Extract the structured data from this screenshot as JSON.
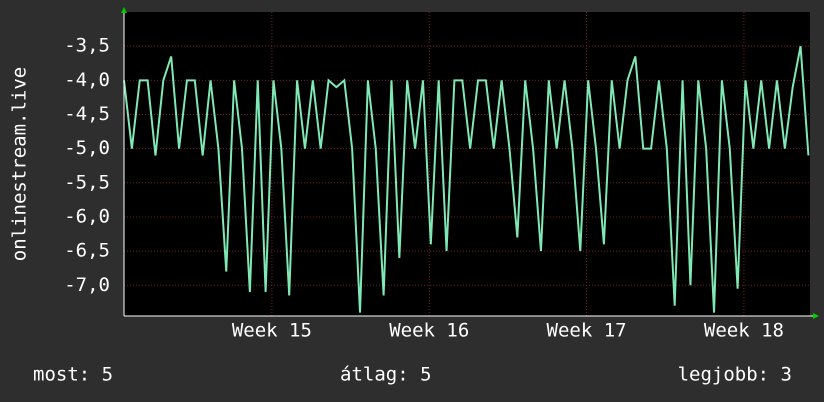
{
  "chart_data": {
    "type": "line",
    "y_label": "onlinestream.live",
    "x": [
      14.06,
      14.11,
      14.16,
      14.21,
      14.26,
      14.31,
      14.36,
      14.41,
      14.46,
      14.51,
      14.56,
      14.61,
      14.66,
      14.71,
      14.76,
      14.81,
      14.86,
      14.91,
      14.96,
      15.01,
      15.06,
      15.11,
      15.16,
      15.21,
      15.26,
      15.31,
      15.36,
      15.41,
      15.46,
      15.51,
      15.56,
      15.61,
      15.66,
      15.71,
      15.76,
      15.81,
      15.86,
      15.91,
      15.96,
      16.01,
      16.06,
      16.11,
      16.16,
      16.21,
      16.26,
      16.31,
      16.36,
      16.41,
      16.46,
      16.51,
      16.56,
      16.61,
      16.66,
      16.71,
      16.76,
      16.81,
      16.86,
      16.91,
      16.96,
      17.01,
      17.06,
      17.11,
      17.16,
      17.21,
      17.26,
      17.31,
      17.36,
      17.41,
      17.46,
      17.51,
      17.56,
      17.61,
      17.66,
      17.71,
      17.76,
      17.81,
      17.86,
      17.91,
      17.96,
      18.01,
      18.06,
      18.11,
      18.16,
      18.21,
      18.26,
      18.31,
      18.36,
      18.41
    ],
    "series": [
      {
        "color": "#7fe8b4",
        "values": [
          -4.0,
          -5.0,
          -4.0,
          -4.0,
          -5.1,
          -4.0,
          -3.65,
          -5.0,
          -4.0,
          -4.0,
          -5.1,
          -4.0,
          -5.0,
          -6.8,
          -4.0,
          -5.0,
          -7.1,
          -4.0,
          -7.1,
          -4.0,
          -5.0,
          -7.15,
          -4.0,
          -5.0,
          -4.0,
          -5.0,
          -4.0,
          -4.1,
          -4.0,
          -5.0,
          -7.4,
          -4.0,
          -5.0,
          -7.15,
          -4.0,
          -6.6,
          -4.0,
          -5.0,
          -4.0,
          -6.4,
          -4.0,
          -6.5,
          -4.0,
          -4.0,
          -5.0,
          -4.0,
          -4.0,
          -5.0,
          -4.0,
          -5.0,
          -6.3,
          -4.0,
          -5.0,
          -6.5,
          -4.0,
          -5.0,
          -4.0,
          -5.0,
          -6.5,
          -4.0,
          -5.0,
          -6.4,
          -4.0,
          -5.0,
          -4.0,
          -3.65,
          -5.0,
          -5.0,
          -4.0,
          -5.0,
          -7.3,
          -4.0,
          -7.0,
          -4.0,
          -5.0,
          -7.4,
          -4.0,
          -5.0,
          -7.05,
          -4.0,
          -5.0,
          -4.0,
          -5.0,
          -4.0,
          -5.0,
          -4.1,
          -3.5,
          -5.1
        ]
      }
    ],
    "xlim": [
      14.06,
      18.42
    ],
    "xticks": [
      {
        "value": 15,
        "label": "Week 15"
      },
      {
        "value": 16,
        "label": "Week 16"
      },
      {
        "value": 17,
        "label": "Week 17"
      },
      {
        "value": 18,
        "label": "Week 18"
      }
    ],
    "ylim": [
      -7.45,
      -3.0
    ],
    "yticks": [
      {
        "value": -3.5,
        "label": "-3,5"
      },
      {
        "value": -4.0,
        "label": "-4,0"
      },
      {
        "value": -4.5,
        "label": "-4,5"
      },
      {
        "value": -5.0,
        "label": "-5,0"
      },
      {
        "value": -5.5,
        "label": "-5,5"
      },
      {
        "value": -6.0,
        "label": "-6,0"
      },
      {
        "value": -6.5,
        "label": "-6,5"
      },
      {
        "value": -7.0,
        "label": "-7,0"
      }
    ],
    "grid": true,
    "summary": [
      "most: 5",
      "átlag: 5",
      "legjobb: 3"
    ]
  }
}
